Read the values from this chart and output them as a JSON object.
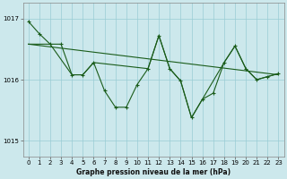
{
  "xlabel": "Graphe pression niveau de la mer (hPa)",
  "bg_color": "#cce8ec",
  "grid_color": "#99ccd4",
  "line_color": "#1a5c1a",
  "xlim": [
    -0.5,
    23.5
  ],
  "ylim": [
    1014.75,
    1017.25
  ],
  "yticks": [
    1015,
    1016,
    1017
  ],
  "xticks": [
    0,
    1,
    2,
    3,
    4,
    5,
    6,
    7,
    8,
    9,
    10,
    11,
    12,
    13,
    14,
    15,
    16,
    17,
    18,
    19,
    20,
    21,
    22,
    23
  ],
  "series1": [
    [
      0,
      1016.95
    ],
    [
      1,
      1016.75
    ],
    [
      2,
      1016.58
    ],
    [
      3,
      1016.58
    ],
    [
      4,
      1016.08
    ],
    [
      5,
      1016.08
    ],
    [
      6,
      1016.28
    ],
    [
      7,
      1015.82
    ],
    [
      8,
      1015.55
    ],
    [
      9,
      1015.55
    ],
    [
      10,
      1015.92
    ],
    [
      11,
      1016.18
    ],
    [
      12,
      1016.72
    ],
    [
      13,
      1016.18
    ],
    [
      14,
      1015.98
    ],
    [
      15,
      1015.38
    ],
    [
      16,
      1015.68
    ],
    [
      17,
      1015.78
    ],
    [
      18,
      1016.28
    ],
    [
      19,
      1016.55
    ],
    [
      20,
      1016.18
    ],
    [
      21,
      1016.0
    ],
    [
      22,
      1016.05
    ],
    [
      23,
      1016.1
    ]
  ],
  "series2": [
    [
      0,
      1016.58
    ],
    [
      23,
      1016.08
    ]
  ],
  "series3": [
    [
      0,
      1016.58
    ],
    [
      2,
      1016.58
    ],
    [
      4,
      1016.08
    ],
    [
      5,
      1016.08
    ],
    [
      6,
      1016.28
    ],
    [
      11,
      1016.18
    ],
    [
      12,
      1016.72
    ],
    [
      13,
      1016.18
    ],
    [
      14,
      1015.98
    ],
    [
      15,
      1015.38
    ],
    [
      18,
      1016.28
    ],
    [
      19,
      1016.55
    ],
    [
      20,
      1016.18
    ],
    [
      21,
      1016.0
    ],
    [
      23,
      1016.1
    ]
  ],
  "xlabel_fontsize": 5.5,
  "tick_fontsize": 5.0
}
